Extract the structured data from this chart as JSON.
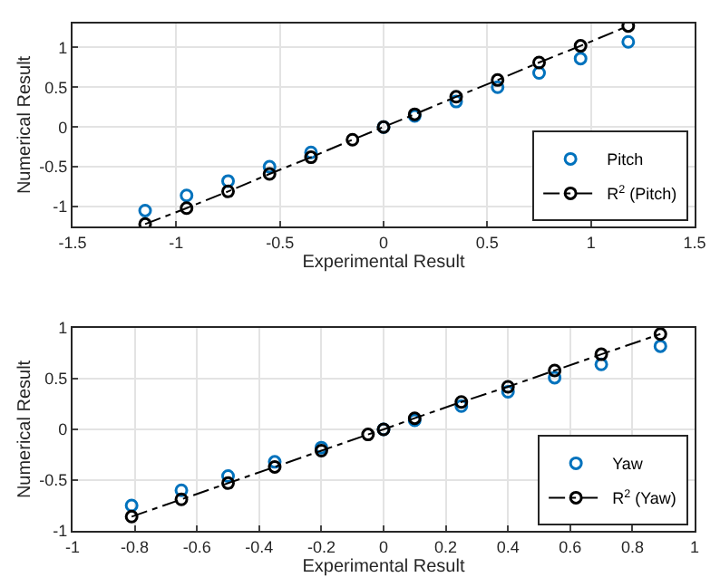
{
  "chart_data": [
    {
      "type": "scatter",
      "xlabel": "Experimental Result",
      "ylabel": "Numerical Result",
      "xlim": [
        -1.5,
        1.5
      ],
      "xticks": [
        -1.5,
        -1,
        -0.5,
        0,
        0.5,
        1,
        1.5
      ],
      "ylim": [
        -1.25,
        1.3
      ],
      "yticks": [
        -1,
        -0.5,
        0,
        0.5,
        1
      ],
      "grid": true,
      "legend": "bottom right",
      "marker": "circle",
      "series": [
        {
          "name": "Pitch",
          "color": "#0072bd",
          "x": [
            -1.15,
            -0.95,
            -0.75,
            -0.55,
            -0.35,
            -0.15,
            0,
            0.15,
            0.35,
            0.55,
            0.75,
            0.95,
            1.18
          ],
          "values": [
            -1.05,
            -0.86,
            -0.68,
            -0.5,
            -0.32,
            null,
            0,
            0.14,
            0.32,
            0.5,
            0.68,
            0.86,
            1.07
          ]
        },
        {
          "name": "R$^{2}$ (Pitch)",
          "type": "line",
          "line_style": "dashed",
          "color": "#000000",
          "x": [
            -1.15,
            -0.95,
            -0.75,
            -0.55,
            -0.35,
            -0.15,
            0,
            0.15,
            0.35,
            0.55,
            0.75,
            0.95,
            1.18
          ],
          "values": [
            -1.22,
            -1.02,
            -0.81,
            -0.59,
            -0.38,
            -0.16,
            0,
            0.16,
            0.38,
            0.59,
            0.81,
            1.02,
            1.27
          ]
        }
      ]
    },
    {
      "type": "scatter",
      "xlabel": "Experimental Result",
      "ylabel": "Numerical Result",
      "xlim": [
        -1,
        1
      ],
      "xticks": [
        -1,
        -0.8,
        -0.6,
        -0.4,
        -0.2,
        0,
        0.2,
        0.4,
        0.6,
        0.8,
        1
      ],
      "ylim": [
        -1,
        1
      ],
      "yticks": [
        -1,
        -0.5,
        0,
        0.5,
        1
      ],
      "grid": true,
      "legend": "bottom right",
      "marker": "circle",
      "series": [
        {
          "name": "Yaw",
          "color": "#0072bd",
          "x": [
            -0.81,
            -0.65,
            -0.5,
            -0.35,
            -0.2,
            -0.05,
            0,
            0.1,
            0.25,
            0.4,
            0.55,
            0.7,
            0.89
          ],
          "values": [
            -0.75,
            -0.6,
            -0.46,
            -0.32,
            -0.18,
            null,
            0,
            0.09,
            0.23,
            0.37,
            0.51,
            0.64,
            0.82
          ]
        },
        {
          "name": "R$^{2}$ (Yaw)",
          "type": "line",
          "line_style": "dashed",
          "color": "#000000",
          "x": [
            -0.81,
            -0.65,
            -0.5,
            -0.35,
            -0.2,
            -0.05,
            0,
            0.1,
            0.25,
            0.4,
            0.55,
            0.7,
            0.89
          ],
          "values": [
            -0.86,
            -0.69,
            -0.53,
            -0.37,
            -0.21,
            -0.05,
            0,
            0.11,
            0.27,
            0.42,
            0.58,
            0.74,
            0.94
          ]
        }
      ]
    }
  ]
}
